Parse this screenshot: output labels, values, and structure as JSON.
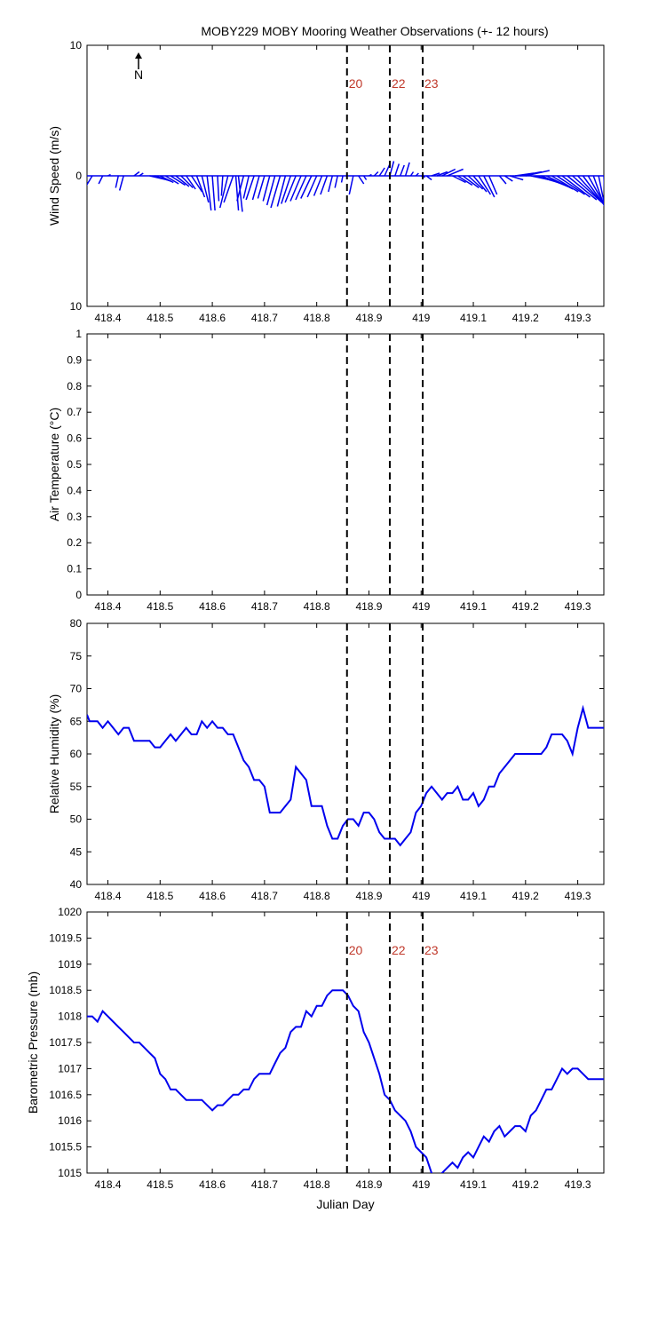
{
  "title": "MOBY229 MOBY Mooring Weather Observations (+- 12 hours)",
  "north_label": "N",
  "colors": {
    "data": "#0000ee",
    "event_label": "#c0392b",
    "event_line": "#000000"
  },
  "chart_data": [
    {
      "type": "line",
      "variant": "wind-stick",
      "ylabel": "Wind Speed (m/s)",
      "xlim": [
        418.36,
        419.35
      ],
      "ylim": [
        -10,
        10
      ],
      "xticks": [
        418.4,
        418.5,
        418.6,
        418.7,
        418.8,
        418.9,
        419,
        419.1,
        419.2,
        419.3
      ],
      "xtick_labels": [
        "418.4",
        "418.5",
        "418.6",
        "418.7",
        "418.8",
        "418.9",
        "419",
        "419.1",
        "419.2",
        "419.3"
      ],
      "yticks": [
        -10,
        0,
        10
      ],
      "ytick_labels": [
        "10",
        "0",
        "10"
      ],
      "events": [
        {
          "x": 418.858,
          "label": "20"
        },
        {
          "x": 418.94,
          "label": "22"
        },
        {
          "x": 419.003,
          "label": "23"
        }
      ],
      "show_event_labels": true,
      "sticks": [
        {
          "x": 418.37,
          "u": -0.6,
          "v": -1.0
        },
        {
          "x": 418.39,
          "u": -0.3,
          "v": -0.6
        },
        {
          "x": 418.4,
          "u": 0.2,
          "v": 0.1
        },
        {
          "x": 418.42,
          "u": -0.2,
          "v": -0.9
        },
        {
          "x": 418.43,
          "u": -0.3,
          "v": -1.1
        },
        {
          "x": 418.45,
          "u": 0.4,
          "v": 0.3
        },
        {
          "x": 418.46,
          "u": 0.3,
          "v": 0.2
        },
        {
          "x": 418.48,
          "u": 1.3,
          "v": -0.3
        },
        {
          "x": 418.49,
          "u": 1.2,
          "v": -0.4
        },
        {
          "x": 418.5,
          "u": 1.0,
          "v": -0.5
        },
        {
          "x": 418.51,
          "u": 1.0,
          "v": -0.6
        },
        {
          "x": 418.52,
          "u": 1.1,
          "v": -0.7
        },
        {
          "x": 418.53,
          "u": 1.0,
          "v": -0.8
        },
        {
          "x": 418.54,
          "u": 0.9,
          "v": -0.9
        },
        {
          "x": 418.55,
          "u": 0.7,
          "v": -1.0
        },
        {
          "x": 418.56,
          "u": 0.8,
          "v": -1.2
        },
        {
          "x": 418.57,
          "u": 0.6,
          "v": -1.6
        },
        {
          "x": 418.58,
          "u": 0.5,
          "v": -2.0
        },
        {
          "x": 418.59,
          "u": 0.3,
          "v": -2.6
        },
        {
          "x": 418.6,
          "u": 0.2,
          "v": -2.6
        },
        {
          "x": 418.61,
          "u": 0.1,
          "v": -1.9
        },
        {
          "x": 418.62,
          "u": -0.1,
          "v": -1.5
        },
        {
          "x": 418.63,
          "u": -0.6,
          "v": -2.4
        },
        {
          "x": 418.64,
          "u": -0.7,
          "v": -2.0
        },
        {
          "x": 418.645,
          "u": 0.2,
          "v": -2.6
        },
        {
          "x": 418.65,
          "u": 0.3,
          "v": -2.7
        },
        {
          "x": 418.66,
          "u": -0.5,
          "v": -1.9
        },
        {
          "x": 418.67,
          "u": -0.4,
          "v": -1.7
        },
        {
          "x": 418.68,
          "u": -0.6,
          "v": -1.8
        },
        {
          "x": 418.69,
          "u": -0.5,
          "v": -1.8
        },
        {
          "x": 418.7,
          "u": -0.5,
          "v": -1.7
        },
        {
          "x": 418.71,
          "u": -0.5,
          "v": -1.9
        },
        {
          "x": 418.72,
          "u": -0.6,
          "v": -2.2
        },
        {
          "x": 418.73,
          "u": -0.7,
          "v": -2.4
        },
        {
          "x": 418.74,
          "u": -0.6,
          "v": -2.3
        },
        {
          "x": 418.75,
          "u": -0.7,
          "v": -2.1
        },
        {
          "x": 418.76,
          "u": -0.8,
          "v": -2.0
        },
        {
          "x": 418.77,
          "u": -0.8,
          "v": -1.9
        },
        {
          "x": 418.78,
          "u": -0.8,
          "v": -1.8
        },
        {
          "x": 418.79,
          "u": -0.8,
          "v": -1.7
        },
        {
          "x": 418.8,
          "u": -0.7,
          "v": -1.6
        },
        {
          "x": 418.81,
          "u": -0.6,
          "v": -1.5
        },
        {
          "x": 418.82,
          "u": -0.5,
          "v": -1.4
        },
        {
          "x": 418.83,
          "u": -0.3,
          "v": -1.2
        },
        {
          "x": 418.84,
          "u": -0.2,
          "v": -0.9
        },
        {
          "x": 418.85,
          "u": -0.1,
          "v": -0.5
        },
        {
          "x": 418.87,
          "u": -0.3,
          "v": -1.4
        },
        {
          "x": 418.88,
          "u": 0.4,
          "v": -0.6
        },
        {
          "x": 418.89,
          "u": 0.2,
          "v": -0.3
        },
        {
          "x": 418.9,
          "u": 0.2,
          "v": 0.1
        },
        {
          "x": 418.91,
          "u": 0.3,
          "v": 0.3
        },
        {
          "x": 418.92,
          "u": 0.4,
          "v": 0.6
        },
        {
          "x": 418.93,
          "u": 0.4,
          "v": 0.9
        },
        {
          "x": 418.94,
          "u": 0.3,
          "v": 1.1
        },
        {
          "x": 418.95,
          "u": 0.3,
          "v": 0.9
        },
        {
          "x": 418.96,
          "u": 0.3,
          "v": 0.8
        },
        {
          "x": 418.97,
          "u": 0.3,
          "v": 1.0
        },
        {
          "x": 418.98,
          "u": 0.2,
          "v": 0.3
        },
        {
          "x": 418.99,
          "u": 0.2,
          "v": 0.2
        },
        {
          "x": 419.0,
          "u": 0.3,
          "v": -0.1
        },
        {
          "x": 419.01,
          "u": 0.4,
          "v": -0.3
        },
        {
          "x": 419.02,
          "u": 0.6,
          "v": 0.2
        },
        {
          "x": 419.03,
          "u": 0.8,
          "v": 0.3
        },
        {
          "x": 419.04,
          "u": 1.0,
          "v": 0.5
        },
        {
          "x": 419.05,
          "u": 1.2,
          "v": 0.5
        },
        {
          "x": 419.06,
          "u": 1.0,
          "v": -0.5
        },
        {
          "x": 419.07,
          "u": 1.1,
          "v": -0.7
        },
        {
          "x": 419.08,
          "u": 1.2,
          "v": -0.9
        },
        {
          "x": 419.09,
          "u": 1.1,
          "v": -1.0
        },
        {
          "x": 419.1,
          "u": 1.0,
          "v": -1.2
        },
        {
          "x": 419.11,
          "u": 0.9,
          "v": -1.4
        },
        {
          "x": 419.12,
          "u": 0.8,
          "v": -1.6
        },
        {
          "x": 419.13,
          "u": 0.6,
          "v": -1.4
        },
        {
          "x": 419.15,
          "u": 0.5,
          "v": -0.6
        },
        {
          "x": 419.16,
          "u": 0.6,
          "v": -0.4
        },
        {
          "x": 419.17,
          "u": 1.0,
          "v": -0.3
        },
        {
          "x": 419.18,
          "u": 1.4,
          "v": 0.2
        },
        {
          "x": 419.19,
          "u": 1.6,
          "v": 0.3
        },
        {
          "x": 419.2,
          "u": 1.8,
          "v": 0.4
        },
        {
          "x": 419.21,
          "u": 1.9,
          "v": -0.4
        },
        {
          "x": 419.22,
          "u": 2.0,
          "v": -0.6
        },
        {
          "x": 419.23,
          "u": 2.0,
          "v": -0.8
        },
        {
          "x": 419.24,
          "u": 2.0,
          "v": -1.0
        },
        {
          "x": 419.25,
          "u": 2.0,
          "v": -1.2
        },
        {
          "x": 419.26,
          "u": 2.1,
          "v": -1.4
        },
        {
          "x": 419.27,
          "u": 2.1,
          "v": -1.6
        },
        {
          "x": 419.28,
          "u": 2.2,
          "v": -1.8
        },
        {
          "x": 419.29,
          "u": 2.2,
          "v": -2.0
        },
        {
          "x": 419.3,
          "u": 2.1,
          "v": -2.3
        },
        {
          "x": 419.31,
          "u": 1.9,
          "v": -2.6
        },
        {
          "x": 419.32,
          "u": 1.7,
          "v": -3.0
        },
        {
          "x": 419.33,
          "u": 1.3,
          "v": -3.6
        },
        {
          "x": 419.34,
          "u": 0.9,
          "v": -4.4
        },
        {
          "x": 419.35,
          "u": 0.2,
          "v": -5.2
        }
      ]
    },
    {
      "type": "line",
      "ylabel": "Air Temperature (°C)",
      "xlim": [
        418.36,
        419.35
      ],
      "ylim": [
        0,
        1
      ],
      "xticks": [
        418.4,
        418.5,
        418.6,
        418.7,
        418.8,
        418.9,
        419,
        419.1,
        419.2,
        419.3
      ],
      "xtick_labels": [
        "418.4",
        "418.5",
        "418.6",
        "418.7",
        "418.8",
        "418.9",
        "419",
        "419.1",
        "419.2",
        "419.3"
      ],
      "yticks": [
        0,
        0.1,
        0.2,
        0.3,
        0.4,
        0.5,
        0.6,
        0.7,
        0.8,
        0.9,
        1
      ],
      "ytick_labels": [
        "0",
        "0.1",
        "0.2",
        "0.3",
        "0.4",
        "0.5",
        "0.6",
        "0.7",
        "0.8",
        "0.9",
        "1"
      ],
      "events": [
        {
          "x": 418.858,
          "label": "20"
        },
        {
          "x": 418.94,
          "label": "22"
        },
        {
          "x": 419.003,
          "label": "23"
        }
      ],
      "show_event_labels": false,
      "x": [],
      "y": []
    },
    {
      "type": "line",
      "ylabel": "Relative Humidity (%)",
      "xlim": [
        418.36,
        419.35
      ],
      "ylim": [
        40,
        80
      ],
      "xticks": [
        418.4,
        418.5,
        418.6,
        418.7,
        418.8,
        418.9,
        419,
        419.1,
        419.2,
        419.3
      ],
      "xtick_labels": [
        "418.4",
        "418.5",
        "418.6",
        "418.7",
        "418.8",
        "418.9",
        "419",
        "419.1",
        "419.2",
        "419.3"
      ],
      "yticks": [
        40,
        45,
        50,
        55,
        60,
        65,
        70,
        75,
        80
      ],
      "ytick_labels": [
        "40",
        "45",
        "50",
        "55",
        "60",
        "65",
        "70",
        "75",
        "80"
      ],
      "events": [
        {
          "x": 418.858,
          "label": "20"
        },
        {
          "x": 418.94,
          "label": "22"
        },
        {
          "x": 419.003,
          "label": "23"
        }
      ],
      "show_event_labels": false,
      "x": [
        418.36,
        418.365,
        418.38,
        418.39,
        418.4,
        418.41,
        418.42,
        418.43,
        418.44,
        418.45,
        418.46,
        418.47,
        418.48,
        418.49,
        418.5,
        418.51,
        418.52,
        418.53,
        418.54,
        418.55,
        418.56,
        418.57,
        418.58,
        418.59,
        418.6,
        418.61,
        418.62,
        418.63,
        418.64,
        418.65,
        418.66,
        418.67,
        418.68,
        418.69,
        418.7,
        418.71,
        418.72,
        418.73,
        418.74,
        418.75,
        418.76,
        418.77,
        418.78,
        418.79,
        418.8,
        418.81,
        418.82,
        418.83,
        418.84,
        418.85,
        418.86,
        418.87,
        418.88,
        418.89,
        418.9,
        418.91,
        418.92,
        418.93,
        418.94,
        418.95,
        418.96,
        418.97,
        418.98,
        418.99,
        419.0,
        419.01,
        419.02,
        419.03,
        419.04,
        419.05,
        419.06,
        419.07,
        419.08,
        419.09,
        419.1,
        419.11,
        419.12,
        419.13,
        419.14,
        419.15,
        419.16,
        419.17,
        419.18,
        419.19,
        419.2,
        419.21,
        419.22,
        419.23,
        419.24,
        419.25,
        419.26,
        419.27,
        419.28,
        419.29,
        419.3,
        419.31,
        419.32,
        419.33,
        419.34,
        419.35
      ],
      "y": [
        66,
        65,
        65,
        64,
        65,
        64,
        63,
        64,
        64,
        62,
        62,
        62,
        62,
        61,
        61,
        62,
        63,
        62,
        63,
        64,
        63,
        63,
        65,
        64,
        65,
        64,
        64,
        63,
        63,
        61,
        59,
        58,
        56,
        56,
        55,
        51,
        51,
        51,
        52,
        53,
        58,
        57,
        56,
        52,
        52,
        52,
        49,
        47,
        47,
        49,
        50,
        50,
        49,
        51,
        51,
        50,
        48,
        47,
        47,
        47,
        46,
        47,
        48,
        51,
        52,
        54,
        55,
        54,
        53,
        54,
        54,
        55,
        53,
        53,
        54,
        52,
        53,
        55,
        55,
        57,
        58,
        59,
        60,
        60,
        60,
        60,
        60,
        60,
        61,
        63,
        63,
        63,
        62,
        60,
        64,
        67,
        64,
        64,
        64,
        64
      ]
    },
    {
      "type": "line",
      "ylabel": "Barometric Pressure (mb)",
      "xlabel": "Julian Day",
      "xlim": [
        418.36,
        419.35
      ],
      "ylim": [
        1015,
        1020
      ],
      "xticks": [
        418.4,
        418.5,
        418.6,
        418.7,
        418.8,
        418.9,
        419,
        419.1,
        419.2,
        419.3
      ],
      "xtick_labels": [
        "418.4",
        "418.5",
        "418.6",
        "418.7",
        "418.8",
        "418.9",
        "419",
        "419.1",
        "419.2",
        "419.3"
      ],
      "yticks": [
        1015,
        1015.5,
        1016,
        1016.5,
        1017,
        1017.5,
        1018,
        1018.5,
        1019,
        1019.5,
        1020
      ],
      "ytick_labels": [
        "1015",
        "1015.5",
        "1016",
        "1016.5",
        "1017",
        "1017.5",
        "1018",
        "1018.5",
        "1019",
        "1019.5",
        "1020"
      ],
      "events": [
        {
          "x": 418.858,
          "label": "20"
        },
        {
          "x": 418.94,
          "label": "22"
        },
        {
          "x": 419.003,
          "label": "23"
        }
      ],
      "show_event_labels": true,
      "x": [
        418.36,
        418.37,
        418.38,
        418.39,
        418.4,
        418.41,
        418.42,
        418.43,
        418.44,
        418.45,
        418.46,
        418.47,
        418.48,
        418.49,
        418.5,
        418.51,
        418.52,
        418.53,
        418.54,
        418.55,
        418.56,
        418.57,
        418.58,
        418.59,
        418.6,
        418.61,
        418.62,
        418.63,
        418.64,
        418.65,
        418.66,
        418.67,
        418.68,
        418.69,
        418.7,
        418.71,
        418.72,
        418.73,
        418.74,
        418.75,
        418.76,
        418.77,
        418.78,
        418.79,
        418.8,
        418.81,
        418.82,
        418.83,
        418.84,
        418.85,
        418.86,
        418.87,
        418.88,
        418.89,
        418.9,
        418.91,
        418.92,
        418.93,
        418.94,
        418.95,
        418.96,
        418.97,
        418.98,
        418.99,
        419.0,
        419.01,
        419.02,
        419.03,
        419.04,
        419.05,
        419.06,
        419.07,
        419.08,
        419.09,
        419.1,
        419.11,
        419.12,
        419.13,
        419.14,
        419.15,
        419.16,
        419.17,
        419.18,
        419.19,
        419.2,
        419.21,
        419.22,
        419.23,
        419.24,
        419.25,
        419.26,
        419.27,
        419.28,
        419.29,
        419.3,
        419.31,
        419.32,
        419.33,
        419.34,
        419.35
      ],
      "y": [
        1018,
        1018,
        1017.9,
        1018.1,
        1018,
        1017.9,
        1017.8,
        1017.7,
        1017.6,
        1017.5,
        1017.5,
        1017.4,
        1017.3,
        1017.2,
        1016.9,
        1016.8,
        1016.6,
        1016.6,
        1016.5,
        1016.4,
        1016.4,
        1016.4,
        1016.4,
        1016.3,
        1016.2,
        1016.3,
        1016.3,
        1016.4,
        1016.5,
        1016.5,
        1016.6,
        1016.6,
        1016.8,
        1016.9,
        1016.9,
        1016.9,
        1017.1,
        1017.3,
        1017.4,
        1017.7,
        1017.8,
        1017.8,
        1018.1,
        1018,
        1018.2,
        1018.2,
        1018.4,
        1018.5,
        1018.5,
        1018.5,
        1018.4,
        1018.2,
        1018.1,
        1017.7,
        1017.5,
        1017.2,
        1016.9,
        1016.5,
        1016.4,
        1016.2,
        1016.1,
        1016,
        1015.8,
        1015.5,
        1015.4,
        1015.3,
        1015,
        1014.9,
        1015,
        1015.1,
        1015.2,
        1015.1,
        1015.3,
        1015.4,
        1015.3,
        1015.5,
        1015.7,
        1015.6,
        1015.8,
        1015.9,
        1015.7,
        1015.8,
        1015.9,
        1015.9,
        1015.8,
        1016.1,
        1016.2,
        1016.4,
        1016.6,
        1016.6,
        1016.8,
        1017,
        1016.9,
        1017,
        1017,
        1016.9,
        1016.8,
        1016.8,
        1016.8,
        1016.8
      ]
    }
  ]
}
